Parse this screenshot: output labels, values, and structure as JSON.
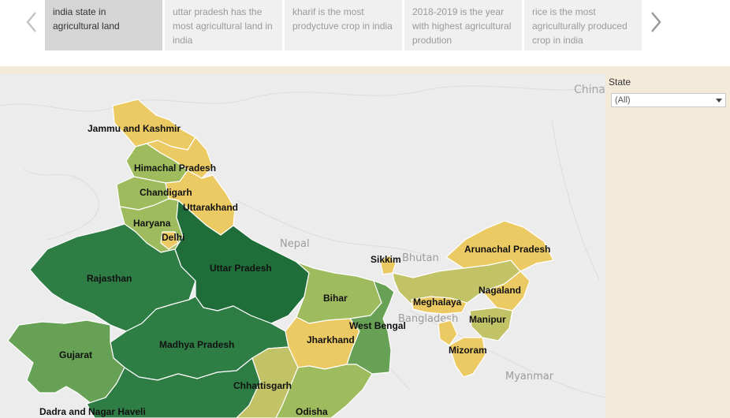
{
  "story": {
    "points": [
      "india state in agricultural land",
      "uttar pradesh has the most agricultural land in india",
      "kharif is the most prodyctuve crop in india",
      "2018-2019 is the year with highest agricultural prodution",
      "rice is the most agriculturally produced crop in india"
    ],
    "active_index": 0
  },
  "filter": {
    "title": "State",
    "selected": "(All)"
  },
  "map": {
    "background_labels": [
      "China",
      "Nepal",
      "Bhutan",
      "Bangladesh",
      "Myanmar"
    ],
    "states": [
      "Jammu and Kashmir",
      "Himachal Pradesh",
      "Chandigarh",
      "Uttarakhand",
      "Haryana",
      "Delhi",
      "Uttar Pradesh",
      "Rajasthan",
      "Sikkim",
      "Arunachal Pradesh",
      "Bihar",
      "Nagaland",
      "Meghalaya",
      "West Bengal",
      "Manipur",
      "Jharkhand",
      "Mizoram",
      "Gujarat",
      "Madhya Pradesh",
      "Chhattisgarh",
      "Dadra and Nagar Haveli",
      "Odisha"
    ],
    "colors": {
      "darkest": "#1f6e3a",
      "dark": "#2e7d45",
      "medium": "#66a155",
      "light": "#9ebc5e",
      "pale": "#c2c366",
      "yellow": "#ecca63",
      "background": "#ececec"
    }
  },
  "icons": {
    "prev": "chevron-left-icon",
    "next": "chevron-right-icon",
    "dropdown": "caret-down-icon"
  }
}
